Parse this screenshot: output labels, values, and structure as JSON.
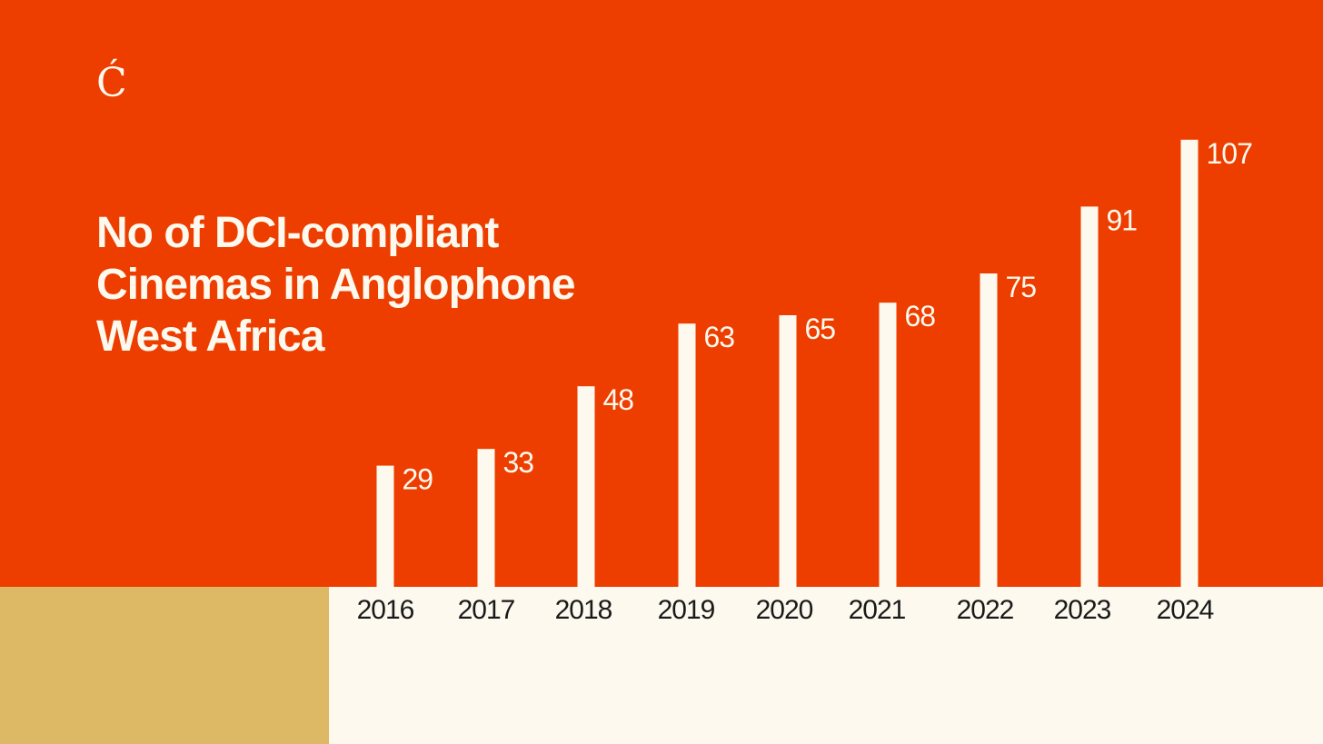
{
  "brand": {
    "logo_text": "Ć"
  },
  "chart_data": {
    "type": "bar",
    "title_lines": [
      "No of DCI-compliant",
      "Cinemas in Anglophone",
      "West Africa"
    ],
    "categories": [
      "2016",
      "2017",
      "2018",
      "2019",
      "2020",
      "2021",
      "2022",
      "2023",
      "2024"
    ],
    "values": [
      29,
      33,
      48,
      63,
      65,
      68,
      75,
      91,
      107
    ],
    "xlabel": "",
    "ylabel": "",
    "grid": false,
    "legend": "none"
  },
  "colors": {
    "background": "#ED3E00",
    "bars": "#FDF9EE",
    "axis_band": "#FDF9EE",
    "accent_block": "#DDB865",
    "value_labels": "#FDF9EE",
    "tick_labels": "#1A1A1A"
  }
}
